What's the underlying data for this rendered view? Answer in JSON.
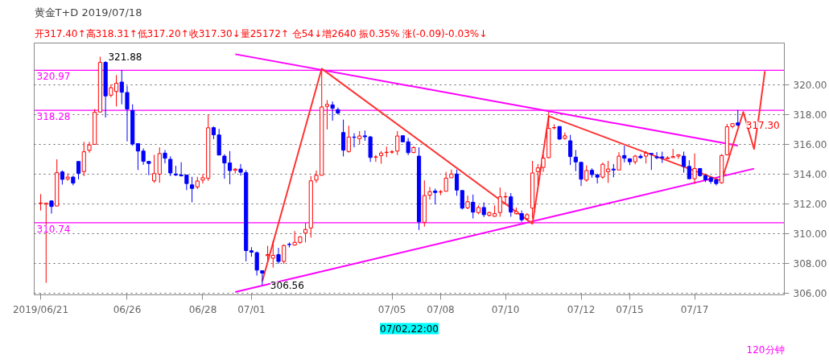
{
  "chart_data": {
    "type": "candlestick",
    "title": "黄金T+D 2019/07/18",
    "subtitle": "开317.40↑高318.31↑低317.20↑收317.30↓量25172↑ 仓54↓增2640 振0.35% 涨(-0.09)-0.03%↓",
    "categories": [
      "2019/06/21",
      null,
      null,
      null,
      null,
      null,
      null,
      null,
      null,
      null,
      null,
      null,
      null,
      null,
      null,
      null,
      "06/26",
      null,
      null,
      null,
      null,
      null,
      null,
      null,
      null,
      null,
      null,
      null,
      null,
      null,
      "06/28",
      null,
      null,
      null,
      null,
      null,
      null,
      null,
      null,
      "07/01",
      null,
      null,
      null,
      null,
      null,
      null,
      null,
      null,
      null,
      null,
      null,
      null,
      null,
      null,
      null,
      null,
      null,
      null,
      null,
      null,
      null,
      null,
      null,
      null,
      null,
      "07/05",
      null,
      null,
      null,
      null,
      null,
      null,
      null,
      null,
      "07/08",
      null,
      null,
      null,
      null,
      null,
      null,
      null,
      null,
      null,
      null,
      null,
      "07/10",
      null,
      null,
      null,
      null,
      null,
      null,
      null,
      null,
      null,
      null,
      null,
      null,
      null,
      "07/12",
      null,
      null,
      null,
      null,
      null,
      null,
      null,
      null,
      "07/15",
      null,
      null,
      null,
      null,
      null,
      null,
      null,
      null,
      null,
      null,
      null,
      "07/17",
      null,
      null,
      null,
      null,
      null,
      null,
      null,
      null,
      null,
      null,
      null,
      null,
      null
    ],
    "ohlc": [
      [
        312.04,
        312.66,
        311.56,
        312.06
      ],
      [
        311.98,
        312.05,
        306.7,
        312.05
      ],
      [
        312.2,
        312.25,
        311.35,
        311.83
      ],
      [
        311.86,
        315.0,
        311.86,
        314.1
      ],
      [
        314.15,
        314.25,
        313.3,
        313.65
      ],
      [
        313.68,
        314.05,
        313.55,
        313.8
      ],
      [
        313.8,
        313.9,
        313.25,
        313.4
      ],
      [
        314.85,
        314.85,
        313.65,
        314.05
      ],
      [
        314.17,
        316.17,
        313.87,
        315.5
      ],
      [
        315.6,
        316.17,
        315.44,
        315.96
      ],
      [
        316.0,
        318.37,
        316.0,
        318.15
      ],
      [
        318.17,
        321.88,
        318.17,
        321.5
      ],
      [
        321.5,
        321.58,
        317.8,
        319.25
      ],
      [
        319.3,
        320.03,
        319.16,
        319.8
      ],
      [
        319.55,
        320.65,
        318.55,
        320.1
      ],
      [
        320.18,
        320.99,
        318.69,
        319.5
      ],
      [
        319.48,
        319.93,
        316.2,
        318.37
      ],
      [
        318.27,
        318.69,
        315.9,
        316.02
      ],
      [
        316.05,
        316.07,
        314.28,
        315.55
      ],
      [
        315.55,
        315.73,
        314.63,
        314.86
      ],
      [
        314.85,
        314.89,
        313.93,
        314.72
      ],
      [
        313.55,
        315.3,
        313.42,
        314.04
      ],
      [
        314.0,
        315.8,
        313.42,
        315.38
      ],
      [
        315.41,
        315.62,
        314.72,
        315.07
      ],
      [
        315.0,
        315.2,
        313.87,
        314.08
      ],
      [
        314.01,
        314.56,
        313.87,
        313.95
      ],
      [
        313.94,
        314.8,
        313.87,
        313.88
      ],
      [
        313.94,
        313.94,
        312.93,
        313.37
      ],
      [
        313.28,
        313.82,
        312.11,
        313.04
      ],
      [
        313.14,
        313.82,
        313.0,
        313.54
      ],
      [
        313.6,
        314.01,
        313.37,
        313.76
      ],
      [
        313.72,
        318.0,
        313.55,
        317.11
      ],
      [
        317.12,
        317.2,
        316.35,
        316.64
      ],
      [
        316.63,
        317.04,
        315.28,
        315.28
      ],
      [
        315.21,
        315.34,
        313.69,
        314.75
      ],
      [
        314.75,
        315.55,
        313.32,
        314.24
      ],
      [
        314.26,
        314.41,
        314.04,
        314.34
      ],
      [
        314.34,
        314.68,
        313.9,
        314.13
      ],
      [
        314.1,
        314.27,
        308.14,
        308.87
      ],
      [
        308.86,
        309.1,
        308.46,
        308.76
      ],
      [
        308.73,
        308.8,
        307.19,
        307.56
      ],
      [
        307.52,
        307.52,
        306.56,
        307.36
      ],
      [
        308.53,
        309.19,
        308.18,
        308.6
      ],
      [
        308.36,
        309.52,
        307.73,
        308.55
      ],
      [
        308.6,
        309.05,
        307.98,
        308.14
      ],
      [
        308.14,
        309.28,
        307.98,
        309.21
      ],
      [
        309.29,
        309.42,
        309.08,
        309.27
      ],
      [
        309.24,
        310.18,
        309.21,
        309.42
      ],
      [
        309.42,
        309.83,
        309.32,
        309.79
      ],
      [
        310.04,
        310.73,
        309.42,
        310.29
      ],
      [
        310.39,
        313.87,
        309.74,
        313.55
      ],
      [
        313.6,
        314.24,
        313.42,
        313.92
      ],
      [
        313.92,
        320.97,
        313.92,
        318.51
      ],
      [
        318.55,
        318.97,
        317.0,
        318.68
      ],
      [
        318.65,
        318.88,
        317.59,
        318.42
      ],
      [
        318.33,
        318.47,
        318.0,
        318.1
      ],
      [
        316.79,
        317.66,
        315.19,
        315.61
      ],
      [
        315.52,
        317.25,
        315.44,
        316.49
      ],
      [
        316.49,
        316.75,
        315.8,
        316.47
      ],
      [
        316.38,
        316.89,
        315.99,
        316.56
      ],
      [
        316.57,
        316.93,
        316.24,
        316.51
      ],
      [
        316.5,
        316.56,
        314.82,
        315.12
      ],
      [
        315.14,
        315.28,
        314.82,
        315.16
      ],
      [
        315.25,
        315.55,
        314.7,
        315.41
      ],
      [
        315.45,
        315.85,
        315.14,
        315.47
      ],
      [
        315.48,
        315.62,
        315.36,
        315.5
      ],
      [
        315.55,
        316.89,
        315.28,
        316.56
      ],
      [
        316.58,
        316.58,
        316.13,
        316.17
      ],
      [
        316.17,
        316.42,
        315.28,
        315.44
      ],
      [
        315.45,
        315.87,
        315.41,
        315.78
      ],
      [
        315.21,
        315.8,
        310.25,
        310.8
      ],
      [
        310.77,
        313.58,
        310.48,
        312.56
      ],
      [
        312.59,
        313.14,
        312.29,
        312.82
      ],
      [
        312.87,
        313.03,
        311.97,
        312.77
      ],
      [
        312.8,
        312.93,
        312.59,
        312.82
      ],
      [
        312.85,
        314.15,
        312.85,
        313.73
      ],
      [
        313.76,
        314.31,
        313.76,
        314.01
      ],
      [
        314.01,
        314.31,
        312.55,
        312.93
      ],
      [
        312.9,
        312.9,
        311.63,
        311.72
      ],
      [
        311.74,
        312.56,
        311.65,
        312.15
      ],
      [
        312.11,
        312.63,
        311.03,
        311.45
      ],
      [
        311.42,
        311.9,
        311.31,
        311.76
      ],
      [
        311.76,
        312.11,
        311.12,
        311.28
      ],
      [
        311.24,
        311.49,
        311.14,
        311.42
      ],
      [
        311.17,
        311.9,
        311.14,
        311.35
      ],
      [
        311.42,
        313.1,
        311.14,
        312.48
      ],
      [
        312.47,
        312.8,
        311.97,
        312.49
      ],
      [
        312.48,
        312.73,
        311.14,
        311.45
      ],
      [
        311.35,
        311.76,
        311.28,
        311.49
      ],
      [
        311.35,
        311.56,
        310.8,
        310.94
      ],
      [
        311.01,
        311.39,
        310.9,
        311.28
      ],
      [
        311.72,
        314.89,
        311.03,
        314.08
      ],
      [
        314.17,
        314.68,
        313.28,
        314.42
      ],
      [
        314.45,
        315.3,
        314.15,
        315.07
      ],
      [
        315.11,
        318.2,
        315.07,
        317.07
      ],
      [
        317.11,
        317.34,
        317.0,
        317.13
      ],
      [
        317.2,
        317.2,
        316.31,
        316.35
      ],
      [
        316.4,
        316.79,
        316.31,
        316.57
      ],
      [
        316.24,
        316.63,
        314.61,
        315.18
      ],
      [
        315.14,
        315.62,
        314.2,
        314.82
      ],
      [
        314.79,
        314.83,
        313.21,
        313.66
      ],
      [
        313.6,
        314.59,
        313.49,
        314.24
      ],
      [
        314.26,
        314.39,
        313.76,
        313.97
      ],
      [
        313.94,
        314.04,
        313.37,
        313.8
      ],
      [
        313.8,
        314.77,
        313.69,
        314.66
      ],
      [
        314.17,
        314.89,
        313.42,
        314.34
      ],
      [
        314.34,
        314.68,
        313.79,
        314.28
      ],
      [
        314.28,
        315.48,
        314.28,
        315.21
      ],
      [
        315.25,
        315.9,
        314.79,
        315.07
      ],
      [
        315.03,
        315.07,
        314.61,
        314.83
      ],
      [
        314.83,
        315.3,
        314.66,
        315.21
      ],
      [
        315.2,
        315.34,
        315.03,
        315.11
      ],
      [
        315.21,
        315.55,
        314.72,
        315.41
      ],
      [
        315.39,
        315.39,
        314.28,
        315.34
      ],
      [
        315.16,
        315.48,
        315.0,
        315.1
      ],
      [
        315.16,
        315.51,
        314.75,
        315.09
      ],
      [
        315.03,
        315.21,
        315.0,
        315.1
      ],
      [
        315.11,
        315.69,
        315.11,
        315.18
      ],
      [
        315.21,
        315.3,
        315.03,
        315.3
      ],
      [
        315.21,
        315.51,
        314.1,
        314.52
      ],
      [
        314.52,
        314.93,
        313.69,
        313.69
      ],
      [
        313.69,
        315.39,
        313.35,
        314.38
      ],
      [
        314.38,
        314.38,
        313.83,
        313.9
      ],
      [
        313.9,
        314.0,
        313.46,
        313.62
      ],
      [
        313.76,
        313.83,
        313.35,
        313.51
      ],
      [
        313.62,
        313.69,
        313.24,
        313.37
      ],
      [
        313.42,
        315.34,
        313.35,
        315.25
      ],
      [
        315.3,
        317.37,
        315.25,
        317.18
      ],
      [
        317.2,
        317.41,
        317.07,
        317.39
      ],
      [
        317.44,
        318.31,
        317.2,
        317.3
      ],
      null,
      null,
      null,
      null,
      null
    ],
    "colors": [
      "#ff0000",
      "#ff0000",
      "#0000ff",
      "#ff0000",
      "#0000ff",
      "#ff0000",
      "#0000ff",
      "#0000ff",
      "#ff0000",
      "#ff0000",
      "#ff0000",
      "#ff0000",
      "#0000ff",
      "#ff0000",
      "#ff0000",
      "#0000ff",
      "#0000ff",
      "#0000ff",
      "#0000ff",
      "#0000ff",
      "#0000ff",
      "#ff0000",
      "#ff0000",
      "#0000ff",
      "#0000ff",
      "#0000ff",
      "#0000ff",
      "#0000ff",
      "#0000ff",
      "#ff0000",
      "#ff0000",
      "#ff0000",
      "#0000ff",
      "#0000ff",
      "#0000ff",
      "#0000ff",
      "#ff0000",
      "#0000ff",
      "#0000ff",
      "#0000ff",
      "#0000ff",
      "#0000ff",
      "#ff0000",
      "#ff0000",
      "#0000ff",
      "#ff0000",
      "#0000ff",
      "#ff0000",
      "#ff0000",
      "#ff0000",
      "#ff0000",
      "#ff0000",
      "#ff0000",
      "#ff0000",
      "#0000ff",
      "#0000ff",
      "#0000ff",
      "#ff0000",
      "#0000ff",
      "#ff0000",
      "#0000ff",
      "#0000ff",
      "#ff0000",
      "#ff0000",
      "#ff0000",
      "#ff0000",
      "#ff0000",
      "#0000ff",
      "#0000ff",
      "#ff0000",
      "#0000ff",
      "#ff0000",
      "#ff0000",
      "#0000ff",
      "#ff0000",
      "#ff0000",
      "#ff0000",
      "#0000ff",
      "#0000ff",
      "#ff0000",
      "#0000ff",
      "#ff0000",
      "#0000ff",
      "#ff0000",
      "#ff0000",
      "#ff0000",
      "#ff0000",
      "#0000ff",
      "#ff0000",
      "#0000ff",
      "#ff0000",
      "#ff0000",
      "#ff0000",
      "#ff0000",
      "#ff0000",
      "#ff0000",
      "#0000ff",
      "#ff0000",
      "#0000ff",
      "#0000ff",
      "#0000ff",
      "#ff0000",
      "#0000ff",
      "#0000ff",
      "#ff0000",
      "#ff0000",
      "#0000ff",
      "#ff0000",
      "#0000ff",
      "#0000ff",
      "#ff0000",
      "#0000ff",
      "#ff0000",
      "#0000ff",
      "#0000ff",
      "#0000ff",
      "#ff0000",
      "#ff0000",
      "#ff0000",
      "#0000ff",
      "#0000ff",
      "#ff0000",
      "#0000ff",
      "#0000ff",
      "#0000ff",
      "#0000ff",
      "#ff0000",
      "#ff0000",
      "#ff0000",
      "#0000ff",
      null,
      null,
      null,
      null,
      null
    ],
    "series": [
      {
        "type": "line",
        "color": "#ff00ff",
        "values": [
          null,
          null,
          null,
          null,
          null,
          null,
          null,
          null,
          null,
          null,
          null,
          null,
          null,
          null,
          null,
          null,
          null,
          null,
          null,
          null,
          null,
          null,
          null,
          null,
          null,
          null,
          null,
          null,
          null,
          null,
          null,
          null,
          null,
          null,
          null,
          null,
          322.05,
          null,
          null,
          null,
          null,
          null,
          null,
          null,
          null,
          null,
          null,
          null,
          null,
          null,
          null,
          null,
          null,
          null,
          null,
          null,
          null,
          null,
          null,
          null,
          null,
          null,
          null,
          null,
          null,
          null,
          null,
          null,
          null,
          null,
          null,
          null,
          null,
          null,
          null,
          null,
          null,
          null,
          null,
          null,
          null,
          null,
          null,
          null,
          null,
          null,
          null,
          null,
          null,
          null,
          null,
          null,
          null,
          null,
          null,
          null,
          null,
          null,
          null,
          null,
          null,
          null,
          null,
          null,
          null,
          null,
          null,
          null,
          null,
          null,
          null,
          null,
          null,
          null,
          null,
          null,
          null,
          null,
          null,
          null,
          null,
          null,
          null,
          null,
          null,
          null,
          null,
          null,
          null,
          315.92,
          null,
          null,
          null,
          null,
          null
        ]
      },
      {
        "type": "line",
        "color": "#ff00ff",
        "values": [
          null,
          null,
          null,
          null,
          null,
          null,
          null,
          null,
          null,
          null,
          null,
          null,
          null,
          null,
          null,
          null,
          null,
          null,
          null,
          null,
          null,
          null,
          null,
          null,
          null,
          null,
          null,
          null,
          null,
          null,
          null,
          null,
          null,
          null,
          null,
          null,
          306.09,
          null,
          null,
          null,
          null,
          null,
          null,
          null,
          null,
          null,
          null,
          null,
          null,
          null,
          null,
          null,
          null,
          null,
          null,
          null,
          null,
          null,
          null,
          null,
          null,
          null,
          null,
          null,
          null,
          null,
          null,
          null,
          null,
          null,
          null,
          null,
          null,
          null,
          null,
          null,
          null,
          null,
          null,
          null,
          null,
          null,
          null,
          null,
          null,
          null,
          null,
          null,
          null,
          null,
          null,
          null,
          null,
          null,
          null,
          null,
          null,
          null,
          null,
          null,
          null,
          null,
          null,
          null,
          null,
          null,
          null,
          null,
          null,
          null,
          null,
          null,
          null,
          null,
          null,
          null,
          null,
          null,
          null,
          null,
          null,
          null,
          null,
          null,
          null,
          null,
          null,
          null,
          null,
          null,
          null,
          null,
          314.37,
          null,
          null
        ]
      },
      {
        "type": "line",
        "color": "#ff3333",
        "values": [
          null,
          null,
          null,
          null,
          null,
          null,
          null,
          null,
          null,
          null,
          null,
          null,
          null,
          null,
          null,
          null,
          null,
          null,
          null,
          null,
          null,
          null,
          null,
          null,
          null,
          null,
          null,
          null,
          null,
          null,
          null,
          null,
          null,
          null,
          null,
          null,
          null,
          null,
          null,
          null,
          null,
          306.8,
          null,
          null,
          null,
          null,
          null,
          null,
          null,
          null,
          null,
          null,
          321.08,
          null,
          null,
          null,
          null,
          null,
          null,
          null,
          null,
          null,
          null,
          null,
          null,
          null,
          null,
          null,
          null,
          null,
          null,
          null,
          null,
          null,
          null,
          null,
          null,
          null,
          null,
          null,
          null,
          null,
          null,
          null,
          null,
          null,
          null,
          null,
          null,
          null,
          null,
          310.67,
          null,
          null,
          317.89,
          null,
          null,
          null,
          null,
          null,
          null,
          null,
          null,
          null,
          null,
          null,
          null,
          null,
          null,
          null,
          null,
          null,
          null,
          null,
          null,
          null,
          null,
          null,
          null,
          null,
          null,
          null,
          null,
          null,
          null,
          null,
          313.55,
          null,
          null,
          null,
          318.17,
          null,
          315.69,
          318.17,
          320.92
        ]
      }
    ],
    "ylim": [
      305.9,
      322.8
    ],
    "yticks": [
      {
        "value": 306,
        "label": "306.00"
      },
      {
        "value": 308,
        "label": "308.00"
      },
      {
        "value": 310,
        "label": "310.00"
      },
      {
        "value": 312,
        "label": "312.00"
      },
      {
        "value": 314,
        "label": "314.00"
      },
      {
        "value": 316,
        "label": "316.00"
      },
      {
        "value": 318,
        "label": "318.00"
      },
      {
        "value": 320,
        "label": "320.00"
      }
    ],
    "grid": "y",
    "ref_lines": [
      {
        "axis": "y",
        "value": 320.97,
        "label": "320.97",
        "color": "#ff00ff"
      },
      {
        "axis": "y",
        "value": 318.28,
        "label": "318.28",
        "color": "#ff00ff"
      },
      {
        "axis": "y",
        "value": 310.74,
        "label": "310.74",
        "color": "#ff00ff"
      }
    ],
    "annotations": [
      "321.88",
      "306.56",
      "317.30",
      "07/02,22:00",
      "120分钟"
    ]
  }
}
